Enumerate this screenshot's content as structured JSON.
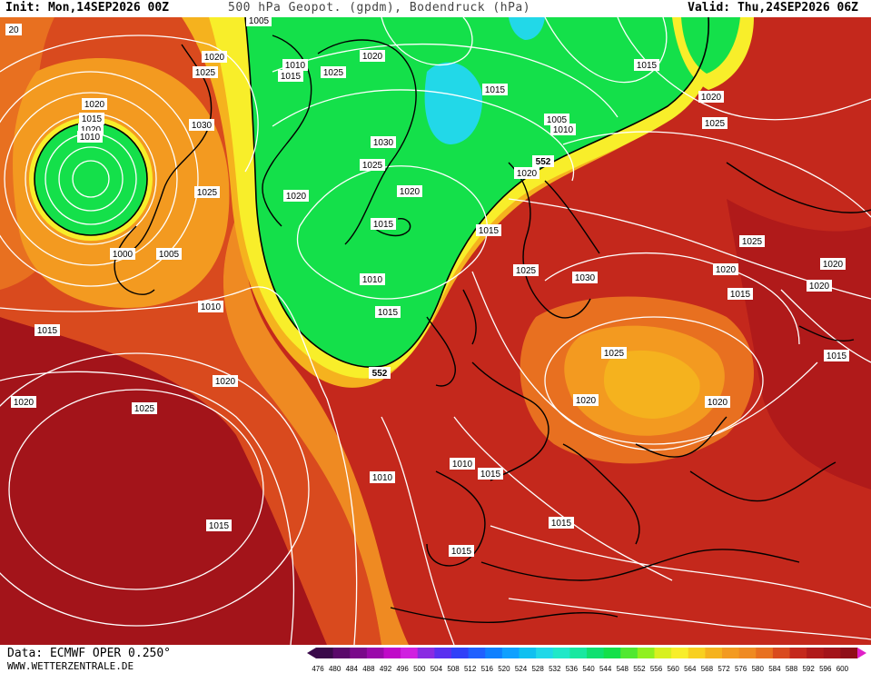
{
  "header": {
    "init": "Init: Mon,14SEP2026 00Z",
    "title": "500 hPa Geopot. (gpdm), Bodendruck (hPa)",
    "valid": "Valid: Thu,24SEP2026 06Z"
  },
  "footer": {
    "source": "Data: ECMWF OPER 0.250°",
    "website": "WWW.WETTERZENTRALE.DE"
  },
  "colors": {
    "deep_red": "#a3141a",
    "red": "#c4281c",
    "red_orange": "#d94a1e",
    "orange": "#ef8a22",
    "amber": "#f5b21e",
    "yellow": "#f8ee2a",
    "green": "#14e04a",
    "cyan": "#22d8e8"
  },
  "geopotential_labels": [
    {
      "id": "g1",
      "text": "552"
    },
    {
      "id": "g2",
      "text": "552"
    },
    {
      "id": "g3",
      "text": "552"
    }
  ],
  "isobar_labels": [
    {
      "id": "i1",
      "text": "20"
    },
    {
      "id": "i2",
      "text": "1005"
    },
    {
      "id": "i3",
      "text": "1020"
    },
    {
      "id": "i4",
      "text": "1025"
    },
    {
      "id": "i5",
      "text": "1010"
    },
    {
      "id": "i6",
      "text": "1015"
    },
    {
      "id": "i7",
      "text": "1025"
    },
    {
      "id": "i8",
      "text": "1020"
    },
    {
      "id": "i9",
      "text": "1015"
    },
    {
      "id": "i10",
      "text": "1020"
    },
    {
      "id": "i11",
      "text": "1015"
    },
    {
      "id": "i12",
      "text": "1020"
    },
    {
      "id": "i13",
      "text": "1015"
    },
    {
      "id": "i14",
      "text": "1010"
    },
    {
      "id": "i15",
      "text": "1030"
    },
    {
      "id": "i16",
      "text": "1030"
    },
    {
      "id": "i17",
      "text": "1025"
    },
    {
      "id": "i18",
      "text": "1005"
    },
    {
      "id": "i19",
      "text": "1010"
    },
    {
      "id": "i20",
      "text": "1025"
    },
    {
      "id": "i21",
      "text": "1020"
    },
    {
      "id": "i22",
      "text": "1020"
    },
    {
      "id": "i23",
      "text": "1020"
    },
    {
      "id": "i24",
      "text": "1000"
    },
    {
      "id": "i25",
      "text": "1005"
    },
    {
      "id": "i26",
      "text": "1015"
    },
    {
      "id": "i27",
      "text": "1010"
    },
    {
      "id": "i28",
      "text": "1010"
    },
    {
      "id": "i29",
      "text": "1015"
    },
    {
      "id": "i30",
      "text": "1025"
    },
    {
      "id": "i31",
      "text": "1030"
    },
    {
      "id": "i32",
      "text": "1020"
    },
    {
      "id": "i33",
      "text": "1025"
    },
    {
      "id": "i34",
      "text": "1015"
    },
    {
      "id": "i35",
      "text": "1015"
    },
    {
      "id": "i36",
      "text": "1020"
    },
    {
      "id": "i37",
      "text": "1020"
    },
    {
      "id": "i38",
      "text": "1015"
    },
    {
      "id": "i39",
      "text": "1025"
    },
    {
      "id": "i40",
      "text": "1020"
    },
    {
      "id": "i41",
      "text": "1020"
    },
    {
      "id": "i42",
      "text": "1020"
    },
    {
      "id": "i43",
      "text": "1025"
    },
    {
      "id": "i44",
      "text": "1020"
    },
    {
      "id": "i45",
      "text": "1010"
    },
    {
      "id": "i46",
      "text": "1015"
    },
    {
      "id": "i47",
      "text": "1025"
    },
    {
      "id": "i48",
      "text": "1020"
    },
    {
      "id": "i49",
      "text": "1010"
    },
    {
      "id": "i50",
      "text": "1015"
    },
    {
      "id": "i51",
      "text": "1015"
    },
    {
      "id": "i52",
      "text": "1015"
    },
    {
      "id": "i53",
      "text": "1015"
    }
  ],
  "colorbar": {
    "labels": [
      "476",
      "480",
      "484",
      "488",
      "492",
      "496",
      "500",
      "504",
      "508",
      "512",
      "516",
      "520",
      "524",
      "528",
      "532",
      "536",
      "540",
      "544",
      "548",
      "552",
      "556",
      "560",
      "564",
      "568",
      "572",
      "576",
      "580",
      "584",
      "588",
      "592",
      "596",
      "600"
    ],
    "colors": [
      "#3a0a4a",
      "#5a0a6a",
      "#7a0a8a",
      "#9a0aaa",
      "#c00ac8",
      "#d020e0",
      "#8a2be2",
      "#5a30f0",
      "#3040f8",
      "#2060ff",
      "#1080ff",
      "#10a0ff",
      "#10c0f0",
      "#20d8e8",
      "#20e8c8",
      "#18e8a0",
      "#10e070",
      "#14e04a",
      "#50e830",
      "#90f020",
      "#d8f020",
      "#f8ee2a",
      "#f8d020",
      "#f5b21e",
      "#f39a20",
      "#ef8a22",
      "#e87020",
      "#d94a1e",
      "#c4281c",
      "#b01a1a",
      "#a3141a",
      "#900e18"
    ]
  }
}
